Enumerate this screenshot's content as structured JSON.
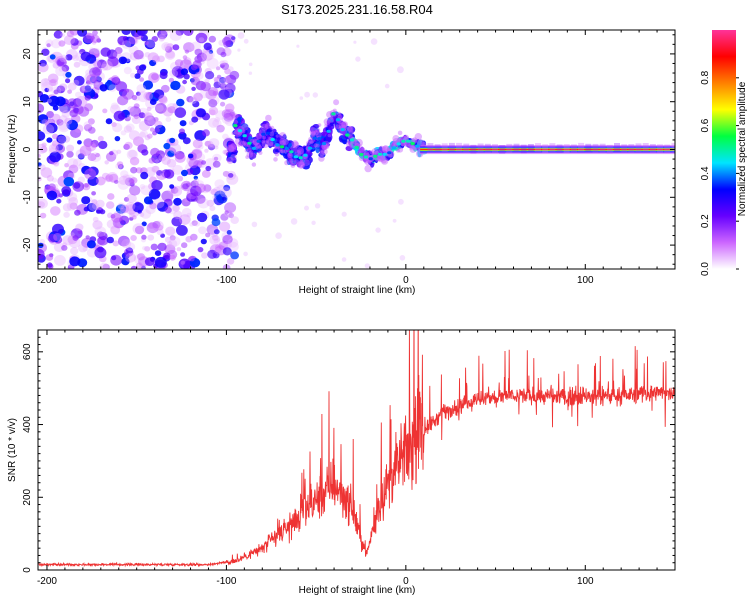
{
  "title": "S173.2025.231.16.58.R04",
  "chart_data": [
    {
      "type": "heatmap",
      "name": "spectrogram",
      "xlabel": "Height of straight line (km)",
      "ylabel": "Frequency (Hz)",
      "xlim": [
        -205,
        150
      ],
      "ylim": [
        -25,
        25
      ],
      "x_ticks": [
        -200,
        -100,
        0,
        100
      ],
      "y_ticks": [
        -20,
        -10,
        0,
        10,
        20
      ],
      "colorbar": {
        "label": "Normalized spectral amplitude",
        "range": [
          0,
          1
        ],
        "ticks": [
          "0.0",
          "0.2",
          "0.4",
          "0.6",
          "0.8"
        ],
        "colors": [
          "#ffffff",
          "#cc66ff",
          "#6600ff",
          "#0000ff",
          "#00e5ff",
          "#00ff40",
          "#ffff00",
          "#ff8000",
          "#ff0000",
          "#ff3399"
        ]
      },
      "ridge_trace": [
        {
          "x": -95,
          "y": 5
        },
        {
          "x": -90,
          "y": 3
        },
        {
          "x": -85,
          "y": 0
        },
        {
          "x": -78,
          "y": 4
        },
        {
          "x": -72,
          "y": 1
        },
        {
          "x": -65,
          "y": 0
        },
        {
          "x": -60,
          "y": -2
        },
        {
          "x": -55,
          "y": -1
        },
        {
          "x": -50,
          "y": 3
        },
        {
          "x": -45,
          "y": 1
        },
        {
          "x": -40,
          "y": 8
        },
        {
          "x": -35,
          "y": 4
        },
        {
          "x": -30,
          "y": 2
        },
        {
          "x": -25,
          "y": -1
        },
        {
          "x": -20,
          "y": -2
        },
        {
          "x": -15,
          "y": -1
        },
        {
          "x": -10,
          "y": -1
        },
        {
          "x": -5,
          "y": 1
        },
        {
          "x": 0,
          "y": 2
        },
        {
          "x": 5,
          "y": 1
        },
        {
          "x": 10,
          "y": 0
        },
        {
          "x": 150,
          "y": 0
        }
      ]
    },
    {
      "type": "line",
      "name": "snr",
      "xlabel": "Height of straight line (km)",
      "ylabel": "SNR (10 * v/v)",
      "xlim": [
        -205,
        150
      ],
      "ylim": [
        0,
        660
      ],
      "x_ticks": [
        -200,
        -100,
        0,
        100
      ],
      "y_ticks": [
        0,
        200,
        400,
        600
      ],
      "color": "#ee3333",
      "envelope": [
        {
          "x": -205,
          "y": 15
        },
        {
          "x": -110,
          "y": 15
        },
        {
          "x": -95,
          "y": 25
        },
        {
          "x": -80,
          "y": 60
        },
        {
          "x": -65,
          "y": 120
        },
        {
          "x": -50,
          "y": 190
        },
        {
          "x": -40,
          "y": 240
        },
        {
          "x": -30,
          "y": 170
        },
        {
          "x": -22,
          "y": 40
        },
        {
          "x": -15,
          "y": 180
        },
        {
          "x": -8,
          "y": 260
        },
        {
          "x": 0,
          "y": 320
        },
        {
          "x": 10,
          "y": 380
        },
        {
          "x": 20,
          "y": 430
        },
        {
          "x": 40,
          "y": 470
        },
        {
          "x": 60,
          "y": 480
        },
        {
          "x": 90,
          "y": 475
        },
        {
          "x": 120,
          "y": 480
        },
        {
          "x": 150,
          "y": 490
        }
      ]
    }
  ]
}
